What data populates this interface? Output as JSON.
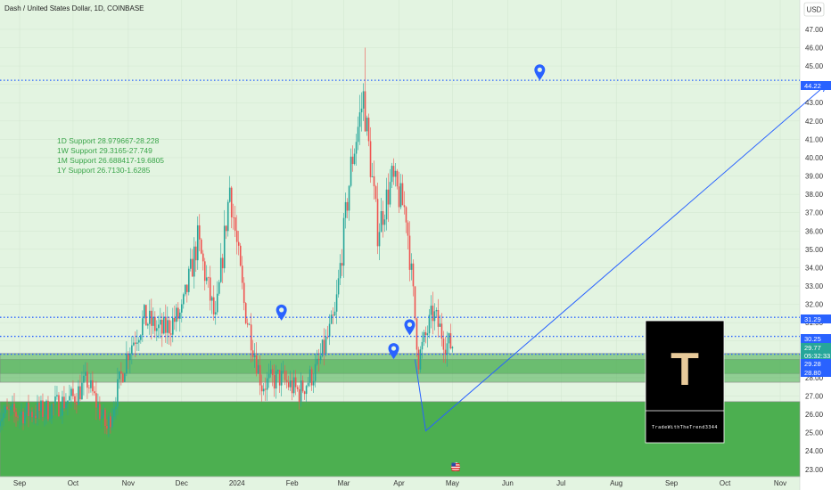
{
  "chart_data": {
    "type": "candlestick",
    "title": "Dash / United States Dollar, 1D, COINBASE",
    "currency": "USD",
    "ylim": [
      22.6,
      48.6
    ],
    "y_ticks": [
      "23.00",
      "24.00",
      "25.00",
      "26.00",
      "27.00",
      "28.00",
      "29.00",
      "30.00",
      "31.00",
      "32.00",
      "33.00",
      "34.00",
      "35.00",
      "36.00",
      "37.00",
      "38.00",
      "39.00",
      "40.00",
      "41.00",
      "42.00",
      "43.00",
      "44.00",
      "45.00",
      "46.00",
      "47.00"
    ],
    "x_ticks": [
      "Sep",
      "Oct",
      "Nov",
      "Dec",
      "2024",
      "Feb",
      "Mar",
      "Apr",
      "May",
      "Jun",
      "Jul",
      "Aug",
      "Sep",
      "Oct",
      "Nov"
    ],
    "notes": [
      "1D Support 28.979667-28.228",
      "1W Support 29.3165-27.749",
      "1M Support 26.688417-19.6805",
      "1Y Support 26.7130-1.6285"
    ],
    "support_zones": [
      {
        "name": "1D Support",
        "low": 28.228,
        "high": 28.979667
      },
      {
        "name": "1W Support",
        "low": 27.749,
        "high": 29.3165
      },
      {
        "name": "1M Support",
        "low": 19.6805,
        "high": 26.688417
      }
    ],
    "horizontal_lines": [
      {
        "price": 44.22,
        "label": "44.22"
      },
      {
        "price": 31.29,
        "label": "31.29"
      },
      {
        "price": 30.25,
        "label": "30.25"
      },
      {
        "price": 29.28,
        "label": "29.28"
      }
    ],
    "price_tags": [
      {
        "label": "31.29",
        "price": 31.29,
        "style": "blue"
      },
      {
        "label": "30.25",
        "price": 30.25,
        "style": "blue"
      },
      {
        "label": "29.77",
        "price": 29.77,
        "style": "green"
      },
      {
        "label": "05:32:33",
        "price": 29.35,
        "style": "green"
      },
      {
        "label": "29.28",
        "price": 29.28,
        "style": "blue"
      },
      {
        "label": "28.80",
        "price": 28.8,
        "style": "blue"
      },
      {
        "label": "44.22",
        "price": 44.22,
        "style": "blue"
      }
    ],
    "current_price": 29.77,
    "countdown": "05:32:33",
    "projection": [
      {
        "date": "2024-04-10",
        "price": 29.0
      },
      {
        "date": "2024-04-16",
        "price": 25.1
      },
      {
        "date": "2024-11-27",
        "price": 44.0
      }
    ],
    "markers": [
      {
        "date": "2024-06-19",
        "price": 44.6
      },
      {
        "date": "2024-01-26",
        "price": 31.5
      },
      {
        "date": "2024-04-07",
        "price": 30.7
      },
      {
        "date": "2024-03-29",
        "price": 29.4
      }
    ],
    "candles_daily_approx": [
      {
        "month": "2023-08-26",
        "close": 26.0
      },
      {
        "month": "2023-09-15",
        "close": 26.2
      },
      {
        "month": "2023-10-01",
        "close": 26.9
      },
      {
        "month": "2023-10-09",
        "close": 27.8
      },
      {
        "month": "2023-10-20",
        "close": 25.2
      },
      {
        "month": "2023-11-01",
        "close": 29.5
      },
      {
        "month": "2023-11-10",
        "close": 31.2
      },
      {
        "month": "2023-11-20",
        "close": 30.5
      },
      {
        "month": "2023-12-01",
        "close": 31.5
      },
      {
        "month": "2023-12-10",
        "close": 35.5
      },
      {
        "month": "2023-12-20",
        "close": 31.0
      },
      {
        "month": "2023-12-28",
        "close": 38.4
      },
      {
        "month": "2024-01-05",
        "close": 32.0
      },
      {
        "month": "2024-01-15",
        "close": 27.6
      },
      {
        "month": "2024-01-25",
        "close": 28.0
      },
      {
        "month": "2024-02-05",
        "close": 27.2
      },
      {
        "month": "2024-02-15",
        "close": 28.5
      },
      {
        "month": "2024-02-25",
        "close": 31.3
      },
      {
        "month": "2024-03-05",
        "close": 39.5
      },
      {
        "month": "2024-03-12",
        "close": 43.3
      },
      {
        "month": "2024-03-20",
        "close": 36.0
      },
      {
        "month": "2024-03-28",
        "close": 38.8
      },
      {
        "month": "2024-04-05",
        "close": 37.0
      },
      {
        "month": "2024-04-12",
        "close": 29.0
      },
      {
        "month": "2024-04-20",
        "close": 31.5
      },
      {
        "month": "2024-04-28",
        "close": 29.8
      }
    ]
  },
  "logo": {
    "letter": "T",
    "caption": "TradeWithTheTrend3344"
  }
}
